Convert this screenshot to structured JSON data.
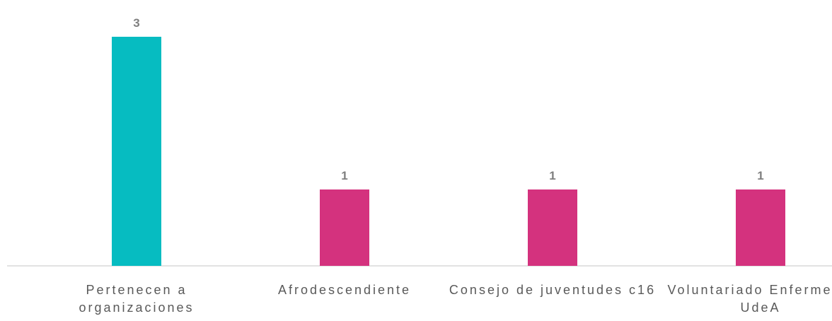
{
  "chart_data": {
    "type": "bar",
    "categories": [
      "Pertenecen a organizaciones",
      "Afrodescendiente",
      "Consejo de juventudes c16",
      "Voluntariado Enfermería UdeA"
    ],
    "values": [
      3,
      1,
      1,
      1
    ],
    "colors": [
      "#06bcc1",
      "#d4327e",
      "#d4327e",
      "#d4327e"
    ],
    "ylim": [
      0,
      3
    ]
  }
}
